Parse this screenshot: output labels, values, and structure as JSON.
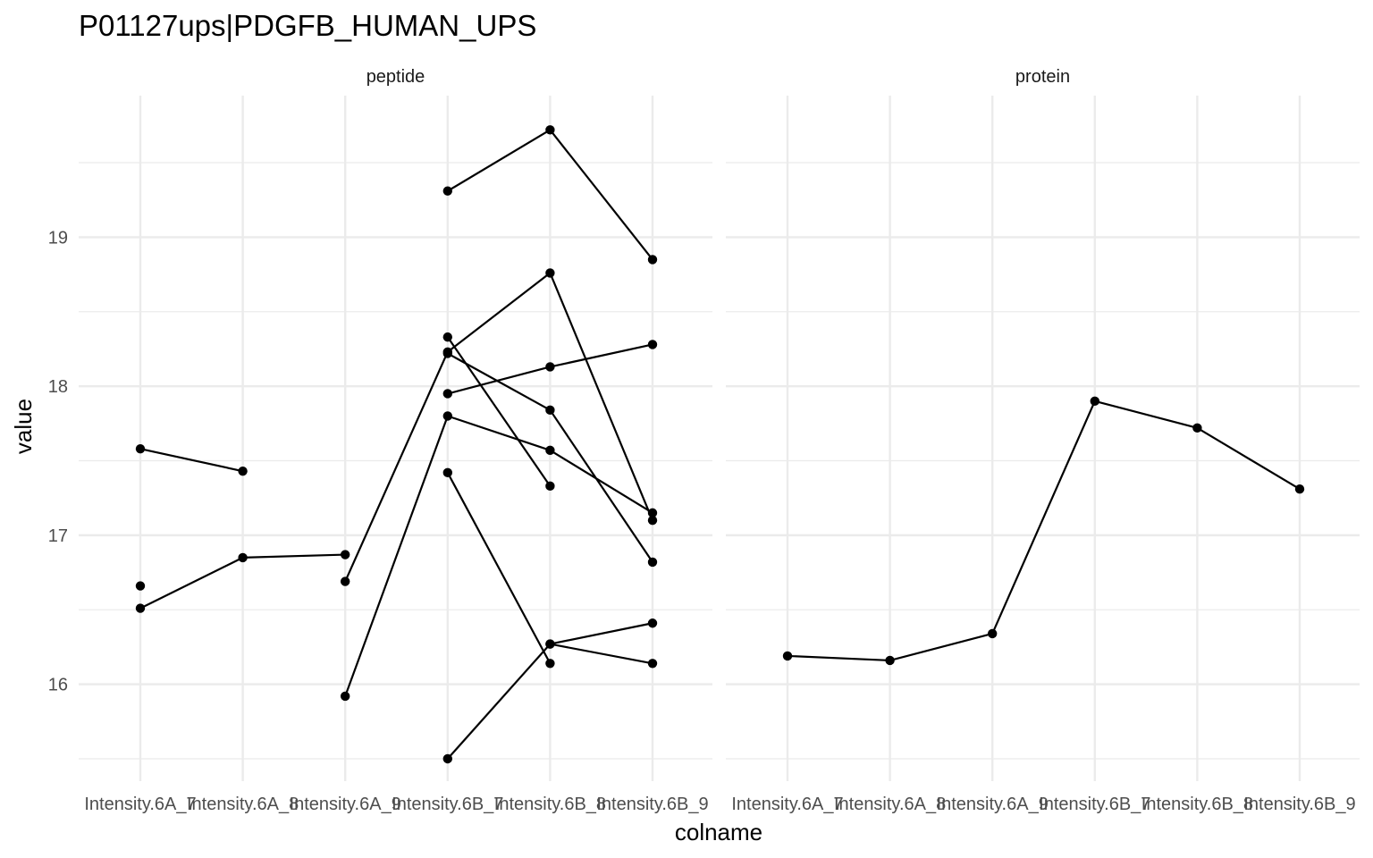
{
  "chart_data": {
    "type": "line",
    "title": "P01127ups|PDGFB_HUMAN_UPS",
    "xlabel": "colname",
    "ylabel": "value",
    "categories": [
      "Intensity.6A_7",
      "Intensity.6A_8",
      "Intensity.6A_9",
      "Intensity.6B_7",
      "Intensity.6B_8",
      "Intensity.6B_9"
    ],
    "ylim": [
      15.35,
      19.95
    ],
    "yticks": [
      16,
      17,
      18,
      19
    ],
    "grid": true,
    "legend": "none",
    "colors": {
      "line": "#000000",
      "point": "#000000",
      "grid": "#ebebeb"
    },
    "panels": [
      {
        "name": "peptide",
        "series": [
          {
            "values": [
              17.58,
              17.43,
              null,
              null,
              null,
              null
            ]
          },
          {
            "values": [
              16.66,
              null,
              null,
              null,
              null,
              null
            ]
          },
          {
            "values": [
              16.51,
              16.85,
              16.87,
              null,
              null,
              null
            ]
          },
          {
            "values": [
              null,
              null,
              16.69,
              18.23,
              18.76,
              17.1
            ]
          },
          {
            "values": [
              null,
              null,
              15.92,
              17.8,
              17.57,
              17.15
            ]
          },
          {
            "values": [
              null,
              null,
              null,
              19.31,
              19.72,
              18.85
            ]
          },
          {
            "values": [
              null,
              null,
              null,
              18.33,
              17.33,
              null
            ]
          },
          {
            "values": [
              null,
              null,
              null,
              18.22,
              17.84,
              16.82
            ]
          },
          {
            "values": [
              null,
              null,
              null,
              17.95,
              18.13,
              18.28
            ]
          },
          {
            "values": [
              null,
              null,
              null,
              17.42,
              16.14,
              null
            ]
          },
          {
            "values": [
              null,
              null,
              null,
              15.5,
              16.27,
              16.41
            ]
          },
          {
            "values": [
              null,
              null,
              null,
              null,
              16.27,
              16.14
            ]
          }
        ]
      },
      {
        "name": "protein",
        "series": [
          {
            "values": [
              16.19,
              16.16,
              16.34,
              17.9,
              17.72,
              17.31
            ]
          }
        ]
      }
    ]
  }
}
